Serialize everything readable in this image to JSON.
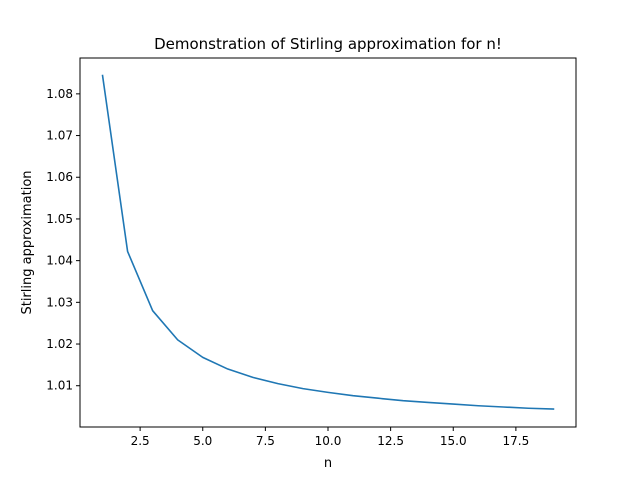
{
  "chart_data": {
    "type": "line",
    "title": "Demonstration of Stirling approximation for n!",
    "xlabel": "n",
    "ylabel": "Stirling approximation",
    "xlim": [
      0.1,
      19.9
    ],
    "ylim": [
      1.0001,
      1.0886
    ],
    "xticks": [
      2.5,
      5.0,
      7.5,
      10.0,
      12.5,
      15.0,
      17.5
    ],
    "xtick_labels": [
      "2.5",
      "5.0",
      "7.5",
      "10.0",
      "12.5",
      "15.0",
      "17.5"
    ],
    "yticks": [
      1.01,
      1.02,
      1.03,
      1.04,
      1.05,
      1.06,
      1.07,
      1.08
    ],
    "ytick_labels": [
      "1.01",
      "1.02",
      "1.03",
      "1.04",
      "1.05",
      "1.06",
      "1.07",
      "1.08"
    ],
    "grid": false,
    "color": "#1f77b4",
    "series": [
      {
        "x": [
          1,
          2,
          3,
          4,
          5,
          6,
          7,
          8,
          9,
          10,
          11,
          12,
          13,
          14,
          15,
          16,
          17,
          18,
          19
        ],
        "values": [
          1.0844,
          1.0422,
          1.028,
          1.021,
          1.0168,
          1.014,
          1.012,
          1.0105,
          1.0093,
          1.0084,
          1.0076,
          1.007,
          1.0064,
          1.006,
          1.0056,
          1.0052,
          1.0049,
          1.0046,
          1.0044
        ]
      }
    ]
  }
}
